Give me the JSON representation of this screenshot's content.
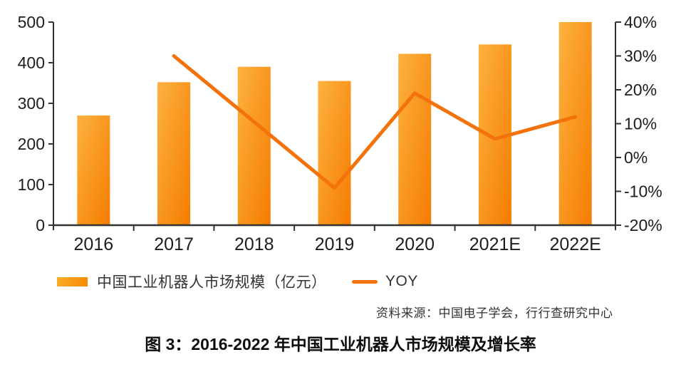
{
  "title": "图 3：2016-2022 年中国工业机器人市场规模及增长率",
  "source": "资料来源：中国电子学会，行行查研究中心",
  "legend": {
    "bar_label": "中国工业机器人市场规模（亿元）",
    "line_label": "YOY"
  },
  "colors": {
    "bar_gradient_start": "#FCB240",
    "bar_gradient_end": "#F57C00",
    "line": "#F4720B",
    "axis": "#333333",
    "tick_text": "#1d1d1d"
  },
  "chart_data": {
    "type": "bar+line",
    "categories": [
      "2016",
      "2017",
      "2018",
      "2019",
      "2020",
      "2021E",
      "2022E"
    ],
    "series": [
      {
        "name": "中国工业机器人市场规模（亿元）",
        "type": "bar",
        "axis": "left",
        "values": [
          270,
          352,
          390,
          355,
          422,
          445,
          500
        ]
      },
      {
        "name": "YOY",
        "type": "line",
        "axis": "right",
        "unit": "%",
        "values": [
          null,
          30,
          10.5,
          -9,
          19,
          5.5,
          12
        ]
      }
    ],
    "left_axis": {
      "range": [
        0,
        500
      ],
      "ticks": [
        0,
        100,
        200,
        300,
        400,
        500
      ],
      "labels": [
        "0",
        "100",
        "200",
        "300",
        "400",
        "500"
      ]
    },
    "right_axis": {
      "range": [
        -20,
        40
      ],
      "ticks": [
        -20,
        -10,
        0,
        10,
        20,
        30,
        40
      ],
      "labels": [
        "-20%",
        "-10%",
        "0%",
        "10%",
        "20%",
        "30%",
        "40%"
      ]
    },
    "grid": false,
    "legend_position": "bottom"
  }
}
